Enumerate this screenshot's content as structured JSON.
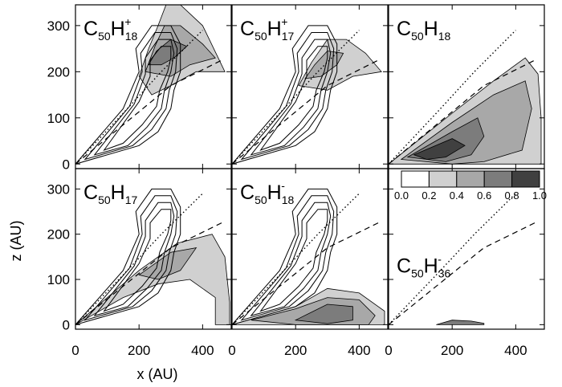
{
  "figure": {
    "xlabel": "x (AU)",
    "ylabel": "z (AU)"
  },
  "colorbar": {
    "ticks": [
      "0.0",
      "0.2",
      "0.4",
      "0.6",
      "0.8",
      "1.0"
    ],
    "levels": [
      "#ffffff",
      "#d0d0d0",
      "#a8a8a8",
      "#7c7c7c",
      "#404040"
    ]
  },
  "panel_labels": [
    {
      "base": "C",
      "sub1": "50",
      "mid": "H",
      "sub2": "18",
      "sup": "+"
    },
    {
      "base": "C",
      "sub1": "50",
      "mid": "H",
      "sub2": "17",
      "sup": "+"
    },
    {
      "base": "C",
      "sub1": "50",
      "mid": "H",
      "sub2": "18",
      "sup": ""
    },
    {
      "base": "C",
      "sub1": "50",
      "mid": "H",
      "sub2": "17",
      "sup": ""
    },
    {
      "base": "C",
      "sub1": "50",
      "mid": "H",
      "sub2": "18",
      "sup": "-"
    },
    {
      "base": "C",
      "sub1": "50",
      "mid": "H",
      "sub2": "36",
      "sup": "-"
    }
  ],
  "chart_data": {
    "type": "contour",
    "layout": "2x3 grid of panels",
    "xlim": [
      0,
      490
    ],
    "ylim": [
      -10,
      345
    ],
    "xticks": [
      0,
      200,
      400
    ],
    "yticks": [
      0,
      100,
      200,
      300
    ],
    "xticklabels": [
      "0",
      "200",
      "400"
    ],
    "yticklabels": [
      "0",
      "100",
      "200",
      "300"
    ],
    "fill_levels": [
      0.0,
      0.2,
      0.4,
      0.6,
      0.8,
      1.0
    ],
    "line_contours_present_in_panels": [
      0,
      1,
      3,
      4
    ],
    "dotted_line": [
      [
        0,
        0
      ],
      [
        150,
        110
      ],
      [
        270,
        200
      ],
      [
        400,
        290
      ]
    ],
    "dashed_line": [
      [
        0,
        0
      ],
      [
        300,
        170
      ],
      [
        460,
        225
      ]
    ]
  }
}
